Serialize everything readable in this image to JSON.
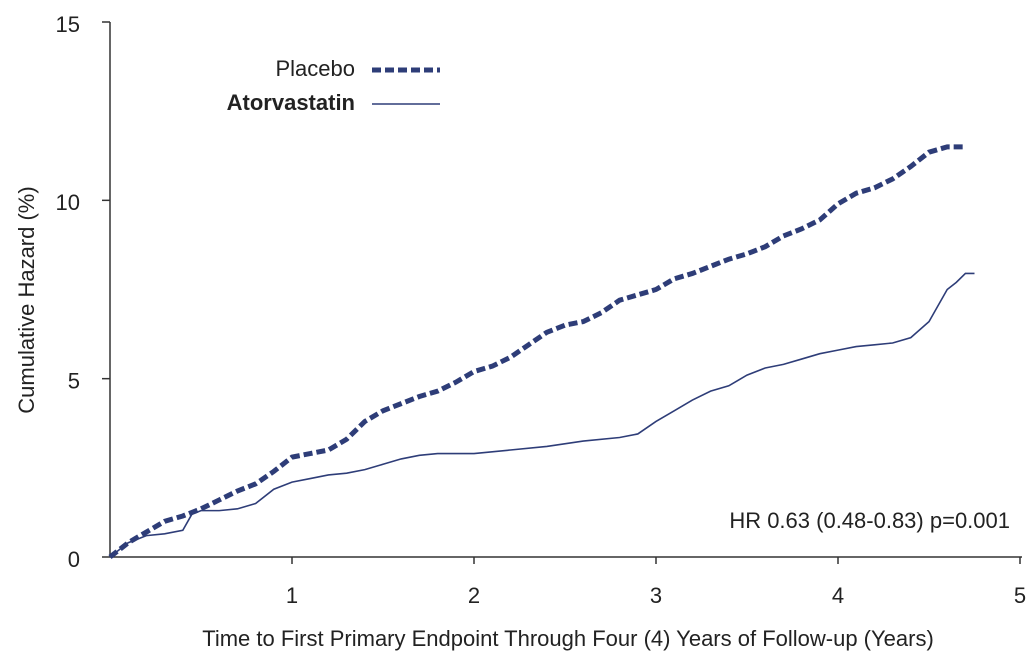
{
  "chart_data": {
    "type": "line",
    "xlabel": "Time to First Primary Endpoint Through Four (4) Years of Follow-up (Years)",
    "ylabel": "Cumulative Hazard (%)",
    "annotation": "HR 0.63 (0.48-0.83)  p=0.001",
    "xlim": [
      0,
      5
    ],
    "xticks": [
      1,
      2,
      3,
      4,
      5
    ],
    "ylim": [
      0,
      15
    ],
    "yticks": [
      0,
      5,
      10,
      15
    ],
    "series": [
      {
        "name": "Placebo",
        "color": "#2e3d78",
        "dashed": true,
        "x": [
          0,
          0.1,
          0.2,
          0.3,
          0.4,
          0.5,
          0.6,
          0.7,
          0.8,
          0.9,
          1.0,
          1.1,
          1.2,
          1.3,
          1.4,
          1.5,
          1.6,
          1.7,
          1.8,
          1.9,
          2.0,
          2.1,
          2.2,
          2.3,
          2.4,
          2.5,
          2.6,
          2.7,
          2.8,
          2.9,
          3.0,
          3.1,
          3.2,
          3.3,
          3.4,
          3.5,
          3.6,
          3.7,
          3.8,
          3.9,
          4.0,
          4.1,
          4.2,
          4.3,
          4.4,
          4.5,
          4.6,
          4.7
        ],
        "values": [
          0,
          0.4,
          0.7,
          1.0,
          1.15,
          1.35,
          1.6,
          1.85,
          2.05,
          2.4,
          2.8,
          2.9,
          3.0,
          3.3,
          3.8,
          4.1,
          4.3,
          4.5,
          4.65,
          4.9,
          5.2,
          5.35,
          5.6,
          5.95,
          6.3,
          6.5,
          6.6,
          6.85,
          7.2,
          7.35,
          7.5,
          7.8,
          7.95,
          8.15,
          8.35,
          8.5,
          8.7,
          9.0,
          9.2,
          9.45,
          9.9,
          10.2,
          10.35,
          10.6,
          10.95,
          11.35,
          11.5,
          11.5
        ]
      },
      {
        "name": "Atorvastatin",
        "color": "#2e3d78",
        "dashed": false,
        "x": [
          0,
          0.1,
          0.2,
          0.3,
          0.4,
          0.45,
          0.5,
          0.6,
          0.7,
          0.8,
          0.9,
          1.0,
          1.1,
          1.2,
          1.3,
          1.4,
          1.5,
          1.6,
          1.7,
          1.8,
          2.0,
          2.2,
          2.4,
          2.6,
          2.8,
          2.9,
          3.0,
          3.1,
          3.2,
          3.3,
          3.4,
          3.5,
          3.6,
          3.7,
          3.8,
          3.9,
          4.0,
          4.1,
          4.2,
          4.3,
          4.4,
          4.5,
          4.6,
          4.65,
          4.7,
          4.75
        ],
        "values": [
          0,
          0.4,
          0.6,
          0.65,
          0.75,
          1.2,
          1.3,
          1.3,
          1.35,
          1.5,
          1.9,
          2.1,
          2.2,
          2.3,
          2.35,
          2.45,
          2.6,
          2.75,
          2.85,
          2.9,
          2.9,
          3.0,
          3.1,
          3.25,
          3.35,
          3.45,
          3.8,
          4.1,
          4.4,
          4.65,
          4.8,
          5.1,
          5.3,
          5.4,
          5.55,
          5.7,
          5.8,
          5.9,
          5.95,
          6.0,
          6.15,
          6.6,
          7.5,
          7.7,
          7.95,
          7.95
        ]
      }
    ]
  }
}
